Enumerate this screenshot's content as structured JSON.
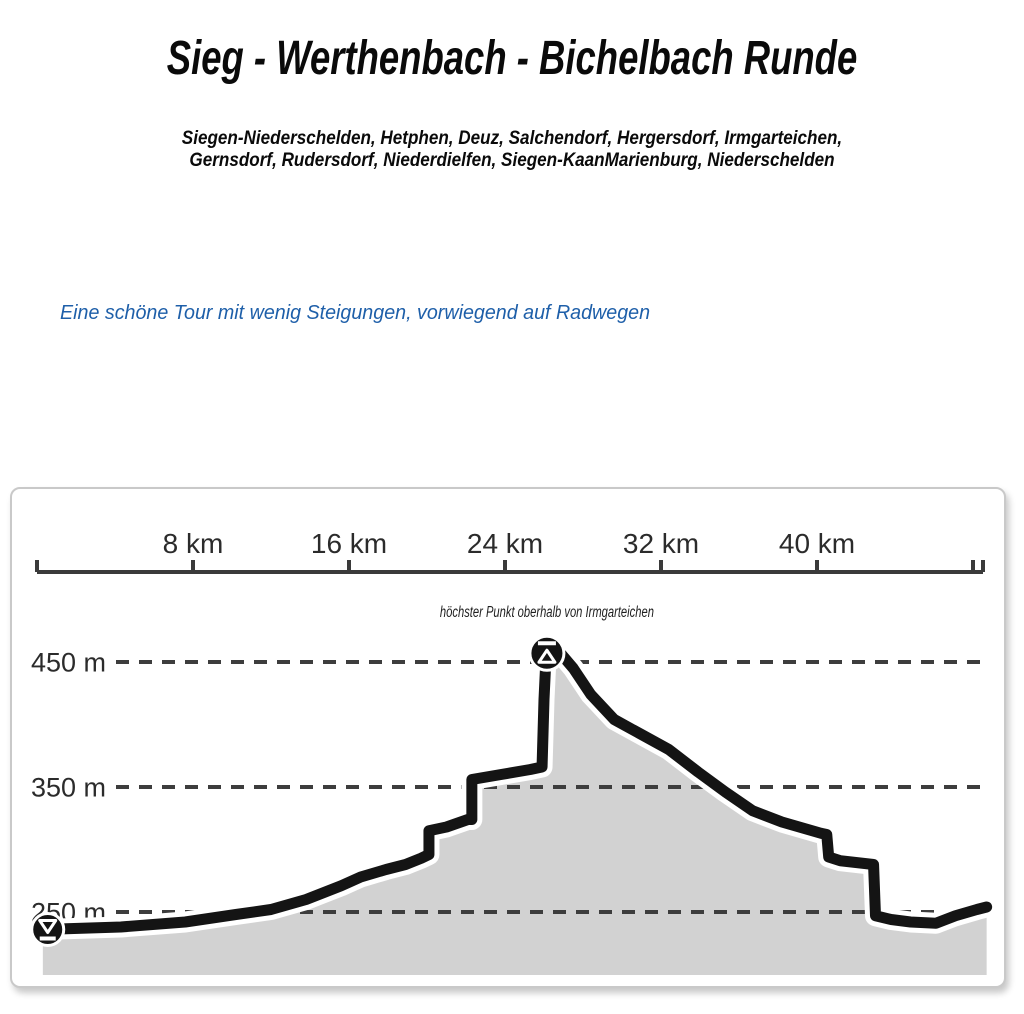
{
  "page": {
    "title": "Sieg - Werthenbach - Bichelbach Runde",
    "subtitle_line1": "Siegen-Niederschelden, Hetphen, Deuz, Salchendorf, Hergersdorf, Irmgarteichen,",
    "subtitle_line2": "Gernsdorf, Rudersdorf, Niederdielfen, Siegen-KaanMarienburg, Niederschelden",
    "description": "Eine schöne Tour mit wenig Steigungen, vorwiegend auf Radwegen",
    "description_color": "#1e5fa9"
  },
  "chart_data": {
    "type": "area",
    "subject": "elevation-profile",
    "x_unit": "km",
    "y_unit": "m",
    "x_axis": {
      "start_km": 0,
      "end_km": 48.6,
      "tick_step_km": 8,
      "tick_kms": [
        0,
        8,
        16,
        24,
        32,
        40,
        48
      ]
    },
    "x_ticks": [
      8,
      16,
      24,
      32,
      40
    ],
    "x_tick_labels": [
      "8 km",
      "16 km",
      "24 km",
      "32 km",
      "40 km"
    ],
    "y_gridlines": [
      450,
      350,
      250
    ],
    "y_gridline_labels": [
      "450 m",
      "350 m",
      "250 m"
    ],
    "total_distance_km": 48.7,
    "min_elevation_m": 236,
    "max_elevation_m": 457,
    "grid_on": true,
    "legend": "none",
    "profile": [
      [
        0.3,
        236
      ],
      [
        4.3,
        238
      ],
      [
        7.6,
        242
      ],
      [
        10.2,
        248
      ],
      [
        12.0,
        252
      ],
      [
        13.8,
        260
      ],
      [
        15.6,
        271
      ],
      [
        16.6,
        278
      ],
      [
        17.9,
        284
      ],
      [
        18.9,
        288
      ],
      [
        19.7,
        293
      ],
      [
        20.1,
        296
      ],
      [
        20.1,
        315
      ],
      [
        21.0,
        318
      ],
      [
        22.1,
        324
      ],
      [
        22.3,
        324
      ],
      [
        22.3,
        356
      ],
      [
        23.8,
        360
      ],
      [
        25.3,
        364
      ],
      [
        25.9,
        366
      ],
      [
        26.0,
        420
      ],
      [
        26.1,
        453
      ],
      [
        26.15,
        457
      ],
      [
        26.9,
        456
      ],
      [
        27.5,
        445
      ],
      [
        28.4,
        424
      ],
      [
        29.6,
        404
      ],
      [
        31.0,
        392
      ],
      [
        32.4,
        380
      ],
      [
        33.9,
        362
      ],
      [
        35.3,
        346
      ],
      [
        36.7,
        331
      ],
      [
        38.2,
        322
      ],
      [
        40.2,
        313
      ],
      [
        40.5,
        312
      ],
      [
        40.6,
        294
      ],
      [
        41.2,
        291
      ],
      [
        42.9,
        288
      ],
      [
        43.0,
        247
      ],
      [
        43.8,
        244
      ],
      [
        44.8,
        242
      ],
      [
        46.1,
        241
      ],
      [
        47.1,
        247
      ],
      [
        48.2,
        252
      ],
      [
        48.7,
        254
      ]
    ],
    "markers": [
      {
        "name": "start-lowest-point-marker",
        "icon": "lowest-point-icon",
        "km": 0.55,
        "m": 236,
        "label": ""
      },
      {
        "name": "highest-point-marker",
        "icon": "highest-point-icon",
        "km": 26.15,
        "m": 457,
        "label": "höchster Punkt oberhalb von Irmgarteichen"
      }
    ],
    "colors": {
      "fill": "#d2d2d2",
      "line": "#141414",
      "casing": "#ffffff",
      "grid": "#3d3d3d",
      "axis": "#3a3a3a",
      "label": "#2b2b2b"
    }
  }
}
